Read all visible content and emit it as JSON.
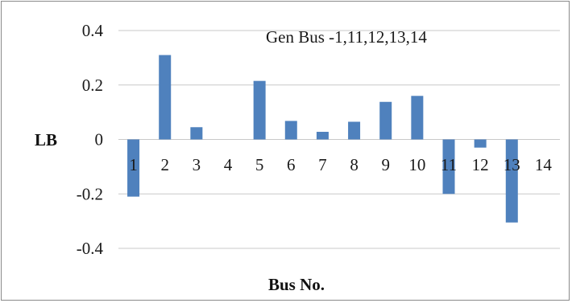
{
  "chart_data": {
    "type": "bar",
    "title": "",
    "annotation": "Gen Bus -1,11,12,13,14",
    "xlabel": "Bus No.",
    "ylabel": "LB",
    "categories": [
      "1",
      "2",
      "3",
      "4",
      "5",
      "6",
      "7",
      "8",
      "9",
      "10",
      "11",
      "12",
      "13",
      "14"
    ],
    "series": [
      {
        "values": [
          -0.21,
          0.31,
          0.045,
          0.0,
          0.215,
          0.068,
          0.028,
          0.065,
          0.138,
          0.16,
          -0.2,
          -0.03,
          -0.305,
          0.0
        ]
      }
    ],
    "ylim": [
      -0.4,
      0.4
    ],
    "yticks": [
      -0.4,
      -0.2,
      0,
      0.2,
      0.4
    ],
    "ytick_labels": [
      "-0.4",
      "-0.2",
      "0",
      "0.2",
      "0.4"
    ],
    "grid": true,
    "bar_color": "#4f81bd",
    "grid_color": "#c8c8c8"
  }
}
